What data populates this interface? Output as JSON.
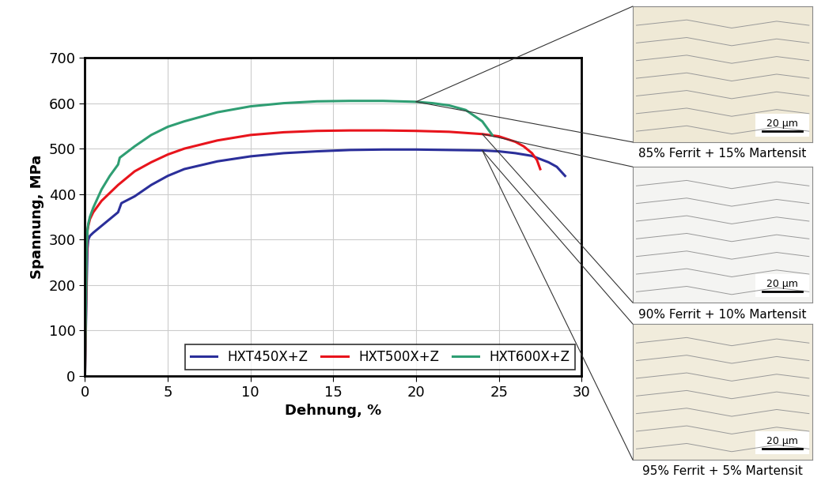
{
  "chart_data": {
    "type": "line",
    "x_label": "Dehnung, %",
    "y_label": "Spannung, MPa",
    "xlim": [
      0,
      30
    ],
    "ylim": [
      0,
      700
    ],
    "xticks": [
      0,
      5,
      10,
      15,
      20,
      25,
      30
    ],
    "yticks": [
      0,
      100,
      200,
      300,
      400,
      500,
      600,
      700
    ],
    "grid": true,
    "legend": "lower right",
    "series": [
      {
        "name": "HXT450X+Z",
        "color": "#2b2f9a",
        "x": [
          0,
          0.05,
          0.1,
          0.15,
          0.2,
          0.3,
          0.5,
          1,
          1.5,
          2,
          2.2,
          3,
          4,
          5,
          6,
          8,
          10,
          12,
          14,
          16,
          18,
          20,
          22,
          24,
          25,
          26,
          27,
          28,
          28.5,
          29
        ],
        "values": [
          0,
          100,
          200,
          280,
          300,
          308,
          315,
          330,
          345,
          360,
          380,
          395,
          420,
          440,
          455,
          472,
          483,
          490,
          494,
          497,
          498,
          498,
          497,
          496,
          494,
          490,
          484,
          470,
          460,
          440
        ]
      },
      {
        "name": "HXT500X+Z",
        "color": "#e8141c",
        "x": [
          0,
          0.05,
          0.1,
          0.15,
          0.2,
          0.3,
          0.5,
          1,
          2,
          3,
          4,
          5,
          6,
          8,
          10,
          12,
          14,
          16,
          18,
          20,
          22,
          24,
          25,
          26,
          26.5,
          27,
          27.3,
          27.5
        ],
        "values": [
          0,
          120,
          250,
          320,
          330,
          345,
          360,
          385,
          420,
          450,
          470,
          487,
          500,
          518,
          530,
          536,
          539,
          540,
          540,
          539,
          537,
          532,
          527,
          515,
          505,
          490,
          475,
          455
        ]
      },
      {
        "name": "HXT600X+Z",
        "color": "#2f9e73",
        "x": [
          0,
          0.05,
          0.1,
          0.15,
          0.2,
          0.3,
          0.5,
          1,
          1.5,
          2,
          2.1,
          3,
          4,
          5,
          6,
          8,
          10,
          12,
          14,
          16,
          18,
          20,
          21,
          22,
          23,
          24,
          24.5,
          24.6
        ],
        "values": [
          0,
          150,
          280,
          320,
          335,
          350,
          370,
          410,
          440,
          465,
          480,
          505,
          530,
          548,
          560,
          580,
          593,
          600,
          604,
          605,
          605,
          603,
          600,
          595,
          585,
          560,
          535,
          530
        ]
      }
    ],
    "annotations": [
      {
        "text": "85% Ferrit + 15% Martensit",
        "series": "HXT600X+Z",
        "scale_bar": "20 µm"
      },
      {
        "text": "90% Ferrit + 10% Martensit",
        "series": "HXT500X+Z",
        "scale_bar": "20 µm"
      },
      {
        "text": "95% Ferrit + 5% Martensit",
        "series": "HXT450X+Z",
        "scale_bar": "20 µm"
      }
    ]
  }
}
